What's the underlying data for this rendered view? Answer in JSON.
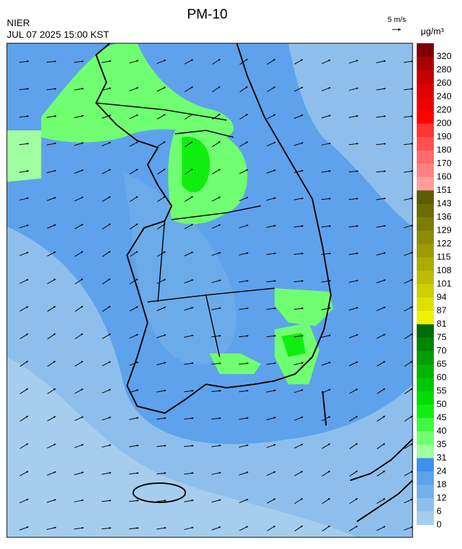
{
  "header": {
    "title": "PM-10",
    "agency": "NIER",
    "timestamp": "JUL 07 2025 15:00 KST",
    "wind_scale": "5 m/s"
  },
  "colorbar": {
    "unit": "μg/m³",
    "ticks": [
      0,
      6,
      12,
      18,
      24,
      31,
      35,
      40,
      45,
      50,
      55,
      60,
      65,
      70,
      75,
      81,
      87,
      94,
      101,
      108,
      115,
      122,
      129,
      136,
      143,
      151,
      160,
      170,
      180,
      190,
      200,
      220,
      240,
      260,
      280,
      320
    ],
    "colors": [
      "#a6cdee",
      "#8ebfec",
      "#74b0ea",
      "#5ea2ec",
      "#3f8ff0",
      "#a0ffa0",
      "#70ff70",
      "#40f840",
      "#10ee10",
      "#00dc00",
      "#00c800",
      "#00b400",
      "#009e00",
      "#008600",
      "#006c00",
      "#f2f200",
      "#e0e000",
      "#cece00",
      "#bcbc00",
      "#acac00",
      "#9c9c00",
      "#8c8c00",
      "#7c7c00",
      "#6c6c00",
      "#5c5c00",
      "#ff9c9c",
      "#ff8282",
      "#ff6a6a",
      "#ff5050",
      "#ff3434",
      "#ff0000",
      "#ee0000",
      "#dc0000",
      "#c40000",
      "#a80000",
      "#7c0000"
    ]
  }
}
